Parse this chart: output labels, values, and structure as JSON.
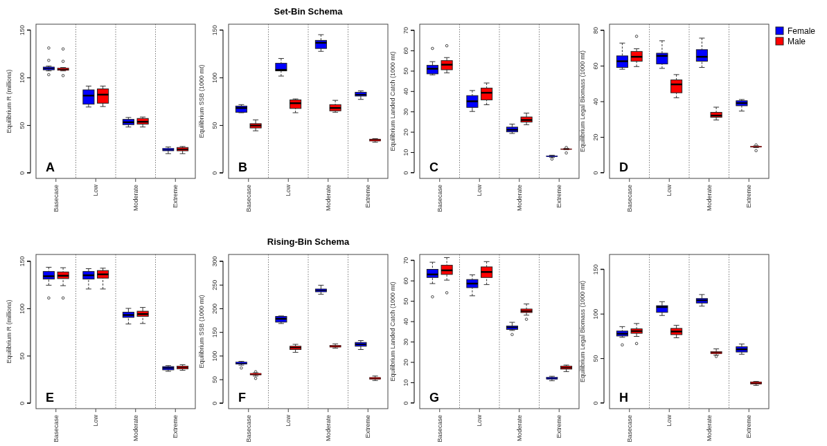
{
  "chart_data": [
    {
      "type": "box",
      "ylabel": "Equilibrium R (millions)",
      "categories": [
        "Basecase",
        "Low",
        "Moderate",
        "Extreme"
      ],
      "ylim": [
        -6,
        156
      ],
      "yticks": [
        0,
        50,
        100,
        150
      ],
      "annotations": [
        "A"
      ],
      "series": [
        {
          "color": "#0000ff",
          "boxes": [
            {
              "low": 107,
              "q1": 108,
              "median": 109.5,
              "q3": 111,
              "high": 112,
              "outliers": [
                103,
                118,
                131
              ]
            },
            {
              "low": 69,
              "q1": 72,
              "median": 81,
              "q3": 87,
              "high": 91
            },
            {
              "low": 48,
              "q1": 50.5,
              "median": 53,
              "q3": 56,
              "high": 58
            },
            {
              "low": 20,
              "q1": 23,
              "median": 24,
              "q3": 25.5,
              "high": 27
            }
          ]
        },
        {
          "color": "#ff0000",
          "boxes": [
            {
              "low": 107,
              "q1": 107.5,
              "median": 108.5,
              "q3": 110,
              "high": 110.5,
              "outliers": [
                102,
                117,
                130
              ]
            },
            {
              "low": 69.5,
              "q1": 73,
              "median": 82,
              "q3": 88,
              "high": 91
            },
            {
              "low": 48,
              "q1": 51,
              "median": 53.5,
              "q3": 57,
              "high": 58.5
            },
            {
              "low": 20,
              "q1": 23,
              "median": 24.5,
              "q3": 26.5,
              "high": 27.5
            }
          ]
        }
      ]
    },
    {
      "type": "box",
      "title": "Set-Bin Schema",
      "ylabel": "Equilibrium SSB (1000 mt)",
      "categories": [
        "Basecase",
        "Low",
        "Moderate",
        "Extreme"
      ],
      "ylim": [
        -6,
        156
      ],
      "yticks": [
        0,
        50,
        100,
        150
      ],
      "annotations": [
        "B"
      ],
      "series": [
        {
          "color": "#0000ff",
          "boxes": [
            {
              "low": 63,
              "q1": 63.5,
              "median": 68,
              "q3": 70,
              "high": 71.5
            },
            {
              "low": 101.5,
              "q1": 107,
              "median": 108,
              "q3": 115,
              "high": 120
            },
            {
              "low": 127.5,
              "q1": 130.5,
              "median": 136.5,
              "q3": 139,
              "high": 145
            },
            {
              "low": 77,
              "q1": 80.5,
              "median": 82,
              "q3": 84.5,
              "high": 86
            }
          ]
        },
        {
          "color": "#ff0000",
          "boxes": [
            {
              "low": 44,
              "q1": 47,
              "median": 49.5,
              "q3": 51.5,
              "high": 55.5
            },
            {
              "low": 63,
              "q1": 67.5,
              "median": 73,
              "q3": 76.5,
              "high": 77.5
            },
            {
              "low": 63.5,
              "q1": 65,
              "median": 68,
              "q3": 71.5,
              "high": 76
            },
            {
              "low": 32,
              "q1": 33.2,
              "median": 34.5,
              "q3": 35.3,
              "high": 35.8
            }
          ]
        }
      ]
    },
    {
      "type": "box",
      "ylabel": "Equilibrium Landed Catch (1000 mt)",
      "categories": [
        "Basecase",
        "Low",
        "Moderate",
        "Extreme"
      ],
      "ylim": [
        -2.9,
        72.9
      ],
      "yticks": [
        0,
        10,
        20,
        30,
        40,
        50,
        60,
        70
      ],
      "annotations": [
        "C"
      ],
      "series": [
        {
          "color": "#0000ff",
          "boxes": [
            {
              "low": 48,
              "q1": 48.5,
              "median": 51,
              "q3": 52.7,
              "high": 54.5,
              "outliers": [
                61
              ]
            },
            {
              "low": 30,
              "q1": 32,
              "median": 35,
              "q3": 37.8,
              "high": 40.3
            },
            {
              "low": 19.2,
              "q1": 20,
              "median": 21,
              "q3": 22.3,
              "high": 23.8
            },
            {
              "low": 7.5,
              "q1": 7.7,
              "median": 8,
              "q3": 8.2,
              "high": 8.5,
              "outliers": [
                6.6
              ]
            }
          ]
        },
        {
          "color": "#ff0000",
          "boxes": [
            {
              "low": 49,
              "q1": 50.5,
              "median": 53,
              "q3": 55,
              "high": 56.5,
              "outliers": [
                62.3
              ]
            },
            {
              "low": 33.3,
              "q1": 35.7,
              "median": 39.2,
              "q3": 41.5,
              "high": 44
            },
            {
              "low": 23.5,
              "q1": 24.8,
              "median": 25.8,
              "q3": 27.3,
              "high": 29.2
            },
            {
              "low": 11.2,
              "q1": 11.3,
              "median": 11.5,
              "q3": 11.7,
              "high": 11.9,
              "outliers": [
                9.6,
                12.3
              ]
            }
          ]
        }
      ]
    },
    {
      "type": "box",
      "ylabel": "Equilibrium Legal Biomass (1000 mt)",
      "categories": [
        "Basecase",
        "Low",
        "Moderate",
        "Extreme"
      ],
      "ylim": [
        -3.3,
        83.3
      ],
      "yticks": [
        0,
        20,
        40,
        60,
        80
      ],
      "annotations": [
        "D"
      ],
      "legend": "right",
      "series": [
        {
          "name": "Female",
          "color": "#0000ff",
          "boxes": [
            {
              "low": 58,
              "q1": 59,
              "median": 62.5,
              "q3": 65.5,
              "high": 72.7
            },
            {
              "low": 58.5,
              "q1": 61,
              "median": 65.5,
              "q3": 67,
              "high": 74
            },
            {
              "low": 59,
              "q1": 62.5,
              "median": 65,
              "q3": 69,
              "high": 75.5
            },
            {
              "low": 34.5,
              "q1": 37.5,
              "median": 39,
              "q3": 40.3,
              "high": 41
            }
          ]
        },
        {
          "name": "Male",
          "color": "#ff0000",
          "boxes": [
            {
              "low": 59.5,
              "q1": 62.5,
              "median": 65,
              "q3": 68,
              "high": 69.5,
              "outliers": [
                76.5
              ]
            },
            {
              "low": 42,
              "q1": 44.8,
              "median": 49.5,
              "q3": 52,
              "high": 55
            },
            {
              "low": 29.5,
              "q1": 31,
              "median": 32,
              "q3": 33.8,
              "high": 36.7
            },
            {
              "low": 14,
              "q1": 14.2,
              "median": 14.5,
              "q3": 14.8,
              "high": 15,
              "outliers": [
                12.3,
                15.5
              ]
            }
          ]
        }
      ]
    },
    {
      "type": "box",
      "ylabel": "Equilibrium R (millions)",
      "categories": [
        "Basecase",
        "Low",
        "Moderate",
        "Extreme"
      ],
      "ylim": [
        -6,
        157
      ],
      "yticks": [
        0,
        50,
        100,
        150
      ],
      "annotations": [
        "E"
      ],
      "series": [
        {
          "color": "#0000ff",
          "boxes": [
            {
              "low": 124.5,
              "q1": 131,
              "median": 134,
              "q3": 139,
              "high": 143.5,
              "outliers": [
                111
              ]
            },
            {
              "low": 120.5,
              "q1": 131,
              "median": 135,
              "q3": 139,
              "high": 142
            },
            {
              "low": 83.5,
              "q1": 90.5,
              "median": 93,
              "q3": 96,
              "high": 100
            },
            {
              "low": 33.5,
              "q1": 35,
              "median": 37,
              "q3": 38.5,
              "high": 39.5
            }
          ]
        },
        {
          "color": "#ff0000",
          "boxes": [
            {
              "low": 124,
              "q1": 131.5,
              "median": 134.5,
              "q3": 138.5,
              "high": 143,
              "outliers": [
                111
              ]
            },
            {
              "low": 120.5,
              "q1": 132,
              "median": 136,
              "q3": 140,
              "high": 142.5
            },
            {
              "low": 84,
              "q1": 91.5,
              "median": 94,
              "q3": 97,
              "high": 101
            },
            {
              "low": 34.5,
              "q1": 36,
              "median": 37.5,
              "q3": 39,
              "high": 40.5
            }
          ]
        }
      ]
    },
    {
      "type": "box",
      "title": "Rising-Bin Schema",
      "ylabel": "Equilibrium SSB (1000 mt)",
      "categories": [
        "Basecase",
        "Low",
        "Moderate",
        "Extreme"
      ],
      "ylim": [
        -12,
        314
      ],
      "yticks": [
        0,
        50,
        100,
        150,
        200,
        250,
        300
      ],
      "annotations": [
        "F"
      ],
      "series": [
        {
          "color": "#0000ff",
          "boxes": [
            {
              "low": 80,
              "q1": 82,
              "median": 83.5,
              "q3": 86.5,
              "high": 88,
              "outliers": [
                74
              ]
            },
            {
              "low": 168,
              "q1": 171,
              "median": 178,
              "q3": 183,
              "high": 184
            },
            {
              "low": 230,
              "q1": 235,
              "median": 238,
              "q3": 241,
              "high": 249
            },
            {
              "low": 113,
              "q1": 120,
              "median": 124,
              "q3": 128,
              "high": 132
            }
          ]
        },
        {
          "color": "#ff0000",
          "boxes": [
            {
              "low": 57,
              "q1": 59.3,
              "median": 60.5,
              "q3": 62.7,
              "high": 64,
              "outliers": [
                52,
                66
              ]
            },
            {
              "low": 107,
              "q1": 113,
              "median": 117,
              "q3": 120,
              "high": 124
            },
            {
              "low": 116,
              "q1": 118,
              "median": 120,
              "q3": 122,
              "high": 125
            },
            {
              "low": 47.5,
              "q1": 50,
              "median": 52,
              "q3": 54,
              "high": 57
            }
          ]
        }
      ]
    },
    {
      "type": "box",
      "ylabel": "Equilibrium Landed Catch (1000 mt)",
      "categories": [
        "Basecase",
        "Low",
        "Moderate",
        "Extreme"
      ],
      "ylim": [
        -2.9,
        72.8
      ],
      "yticks": [
        0,
        10,
        20,
        30,
        40,
        50,
        60,
        70
      ],
      "annotations": [
        "G"
      ],
      "series": [
        {
          "color": "#0000ff",
          "boxes": [
            {
              "low": 58.5,
              "q1": 61.5,
              "median": 63,
              "q3": 65.5,
              "high": 69,
              "outliers": [
                52
              ]
            },
            {
              "low": 52.5,
              "q1": 56.5,
              "median": 58.5,
              "q3": 60.5,
              "high": 62.8
            },
            {
              "low": 35.5,
              "q1": 36,
              "median": 37,
              "q3": 37.7,
              "high": 39.5,
              "outliers": [
                33.5
              ]
            },
            {
              "low": 10.8,
              "q1": 11.5,
              "median": 12,
              "q3": 12.5,
              "high": 13
            }
          ]
        },
        {
          "color": "#ff0000",
          "boxes": [
            {
              "low": 60.2,
              "q1": 63,
              "median": 65,
              "q3": 67.5,
              "high": 71.3,
              "outliers": [
                54
              ]
            },
            {
              "low": 58,
              "q1": 61.5,
              "median": 64.2,
              "q3": 66.7,
              "high": 69.3
            },
            {
              "low": 43,
              "q1": 44.3,
              "median": 45,
              "q3": 46,
              "high": 48.5,
              "outliers": [
                41
              ]
            },
            {
              "low": 15.3,
              "q1": 16.5,
              "median": 17.2,
              "q3": 18,
              "high": 18.5
            }
          ]
        }
      ]
    },
    {
      "type": "box",
      "ylabel": "Equilibrium Legal Biomass (1000 mt)",
      "categories": [
        "Basecase",
        "Low",
        "Moderate",
        "Extreme"
      ],
      "ylim": [
        -6.6,
        166.5
      ],
      "yticks": [
        0,
        50,
        100,
        150
      ],
      "annotations": [
        "H"
      ],
      "series": [
        {
          "color": "#0000ff",
          "boxes": [
            {
              "low": 73.5,
              "q1": 75,
              "median": 77.5,
              "q3": 80.5,
              "high": 85.5,
              "outliers": [
                65
              ]
            },
            {
              "low": 98,
              "q1": 101.5,
              "median": 107.5,
              "q3": 109,
              "high": 113.5
            },
            {
              "low": 108.5,
              "q1": 112,
              "median": 115,
              "q3": 117,
              "high": 121.5
            },
            {
              "low": 54.5,
              "q1": 57,
              "median": 60,
              "q3": 63,
              "high": 66
            }
          ]
        },
        {
          "color": "#ff0000",
          "boxes": [
            {
              "low": 74.5,
              "q1": 78,
              "median": 80.5,
              "q3": 83,
              "high": 89,
              "outliers": [
                66.5
              ]
            },
            {
              "low": 73,
              "q1": 76.5,
              "median": 80,
              "q3": 83.5,
              "high": 87
            },
            {
              "low": 53.5,
              "q1": 55,
              "median": 56.5,
              "q3": 57.5,
              "high": 60.5,
              "outliers": [
                52
              ]
            },
            {
              "low": 19.5,
              "q1": 21,
              "median": 22,
              "q3": 23.5,
              "high": 24
            }
          ]
        }
      ]
    }
  ]
}
